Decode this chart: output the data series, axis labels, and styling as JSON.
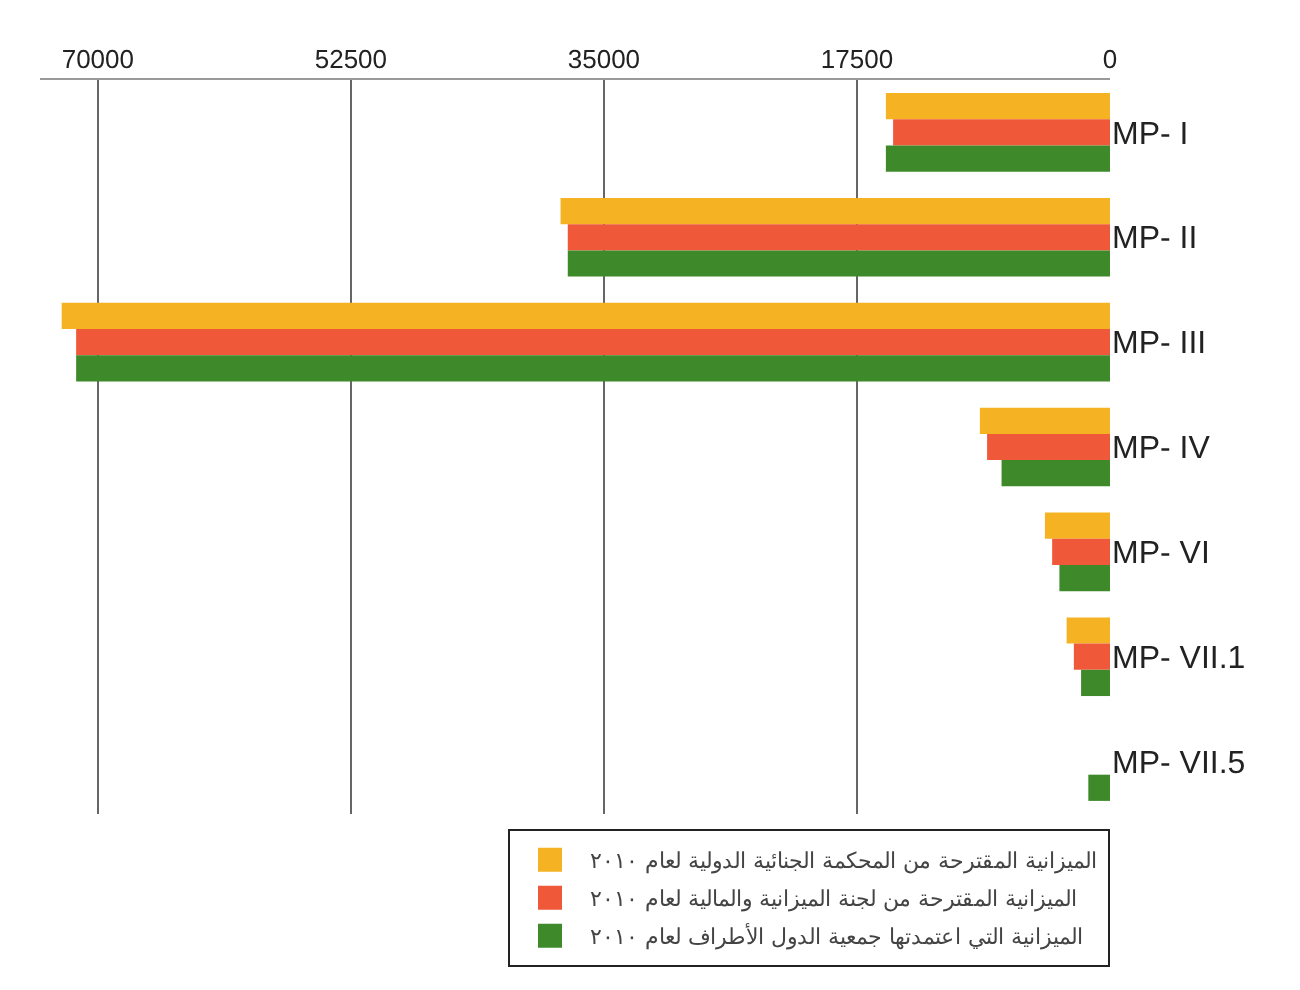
{
  "chart_data": {
    "type": "bar",
    "orientation": "horizontal",
    "categories": [
      "MP- I",
      "MP- II",
      "MP- III",
      "MP- IV",
      "MP- VI",
      "MP- VII.1",
      "MP- VII.5"
    ],
    "series": [
      {
        "name": "الميزانية المقترحة من المحكمة الجنائية الدولية لعام ٢٠١٠",
        "color": "#f5b324",
        "values": [
          15500,
          38000,
          72500,
          9000,
          4500,
          3000,
          0
        ]
      },
      {
        "name": "الميزانية المقترحة من لجنة الميزانية والمالية لعام ٢٠١٠",
        "color": "#f0583a",
        "values": [
          15000,
          37500,
          71500,
          8500,
          4000,
          2500,
          0
        ]
      },
      {
        "name": "الميزانية التي اعتمدتها جمعية الدول الأطراف لعام ٢٠١٠",
        "color": "#3e8a2a",
        "values": [
          15500,
          37500,
          71500,
          7500,
          3500,
          2000,
          1500
        ]
      }
    ],
    "xlim": [
      74000,
      0
    ],
    "xticks": [
      70000,
      52500,
      35000,
      17500,
      0
    ],
    "grid": "x",
    "legend": "bottom"
  }
}
